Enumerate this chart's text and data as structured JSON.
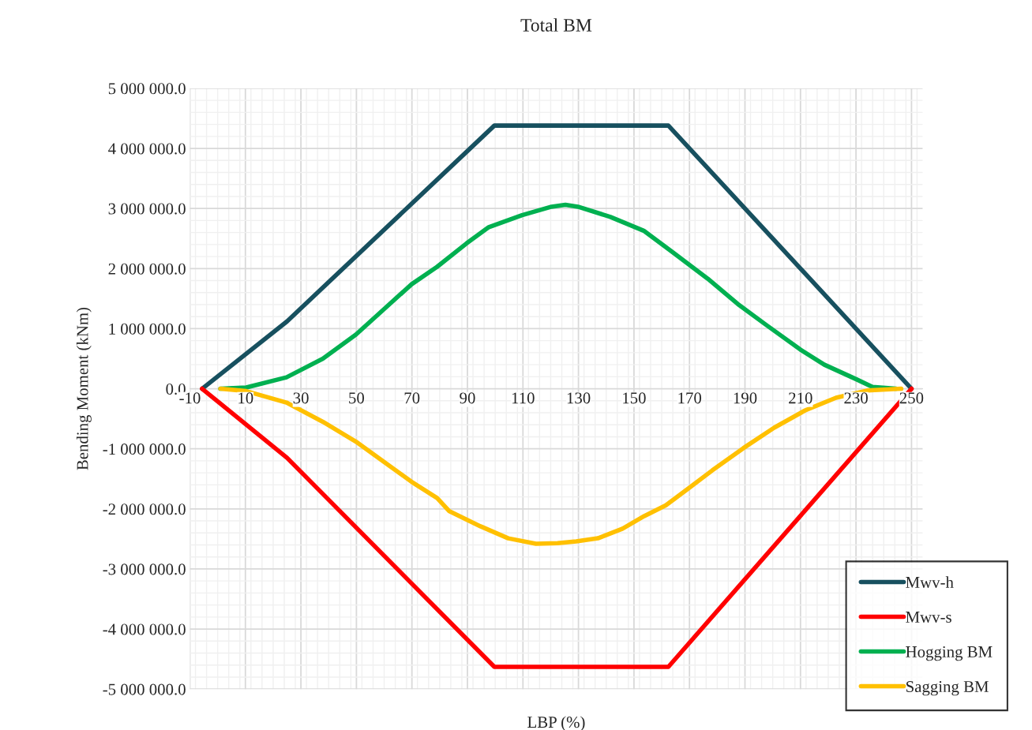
{
  "chart_data": {
    "type": "line",
    "title": "Total BM",
    "xlabel": "LBP (%)",
    "ylabel": "Bending Moment (kNm)",
    "xlim": [
      -10,
      254
    ],
    "xticks": [
      -10,
      10,
      30,
      50,
      70,
      90,
      110,
      130,
      150,
      170,
      190,
      210,
      230,
      250
    ],
    "ylim": [
      -5000000,
      5000000
    ],
    "yticks": [
      {
        "value": -5000000,
        "label": "-5 000 000.0"
      },
      {
        "value": -4000000,
        "label": "-4 000 000.0"
      },
      {
        "value": -3000000,
        "label": "-3 000 000.0"
      },
      {
        "value": -2000000,
        "label": "-2 000 000.0"
      },
      {
        "value": -1000000,
        "label": "-1 000 000.0"
      },
      {
        "value": 0,
        "label": "0.0"
      },
      {
        "value": 1000000,
        "label": "1 000 000.0"
      },
      {
        "value": 2000000,
        "label": "2 000 000.0"
      },
      {
        "value": 3000000,
        "label": "3 000 000.0"
      },
      {
        "value": 4000000,
        "label": "4 000 000.0"
      },
      {
        "value": 5000000,
        "label": "5 000 000.0"
      }
    ],
    "grid": true,
    "legend": "bottom right",
    "marker": "none",
    "line_style": "solid",
    "series": [
      {
        "name": "Mwv-h",
        "color": "#17505f",
        "x": [
          -5.6,
          25.0,
          99.7,
          162.4,
          250
        ],
        "values": [
          0,
          1120000,
          4380000,
          4380000,
          0
        ]
      },
      {
        "name": "Mwv-s",
        "color": "#ff0000",
        "x": [
          -5.6,
          25.0,
          99.7,
          162.4,
          250
        ],
        "values": [
          0,
          -1150000,
          -4630000,
          -4630000,
          0
        ]
      },
      {
        "name": "Hogging BM",
        "color": "#00b050",
        "x": [
          1.0,
          10.3,
          24.8,
          37.9,
          49.8,
          61.5,
          69.9,
          79.1,
          89.7,
          97.7,
          109.7,
          120.3,
          125.3,
          129.8,
          141.5,
          153.5,
          164.0,
          176.6,
          187.4,
          197.7,
          210,
          218.6,
          230,
          235.9,
          244.5
        ],
        "values": [
          0,
          20000,
          190000,
          500000,
          900000,
          1390000,
          1740000,
          2030000,
          2420000,
          2690000,
          2890000,
          3030000,
          3060000,
          3030000,
          2860000,
          2630000,
          2270000,
          1830000,
          1410000,
          1060000,
          650000,
          400000,
          160000,
          30000,
          0
        ]
      },
      {
        "name": "Sagging BM",
        "color": "#ffc000",
        "x": [
          1.0,
          10.3,
          24.8,
          37.9,
          49.8,
          61.5,
          69.9,
          79.1,
          83.5,
          94.7,
          104.7,
          114.7,
          122.5,
          129.2,
          137.0,
          145.9,
          153.7,
          161.5,
          169.3,
          178.2,
          189.4,
          200.5,
          211.7,
          222.8,
          234.0,
          246.3
        ],
        "values": [
          0,
          -40000,
          -230000,
          -550000,
          -880000,
          -1270000,
          -1550000,
          -1820000,
          -2040000,
          -2290000,
          -2490000,
          -2580000,
          -2570000,
          -2540000,
          -2490000,
          -2330000,
          -2120000,
          -1940000,
          -1670000,
          -1360000,
          -990000,
          -650000,
          -360000,
          -150000,
          -30000,
          0
        ]
      }
    ]
  }
}
